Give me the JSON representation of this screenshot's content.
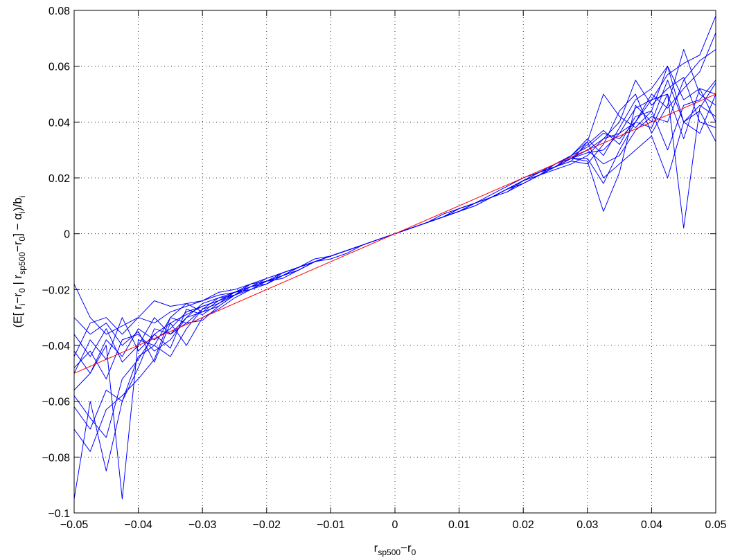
{
  "chart_data": {
    "type": "line",
    "title": "",
    "xlabel": {
      "main": "r",
      "sub1": "sp500",
      "mid": "−r",
      "sub2": "0"
    },
    "ylabel": {
      "parts": [
        {
          "t": "(E[ r",
          "sub": false
        },
        {
          "t": "i",
          "sub": true
        },
        {
          "t": "−r",
          "sub": false
        },
        {
          "t": "0",
          "sub": true
        },
        {
          "t": " | r",
          "sub": false
        },
        {
          "t": "sp500",
          "sub": true
        },
        {
          "t": "−r",
          "sub": false
        },
        {
          "t": "0",
          "sub": true
        },
        {
          "t": "] − α",
          "sub": false
        },
        {
          "t": "i",
          "sub": true
        },
        {
          "t": ")/b",
          "sub": false
        },
        {
          "t": "i",
          "sub": true
        }
      ]
    },
    "xlim": [
      -0.05,
      0.05
    ],
    "ylim": [
      -0.1,
      0.08
    ],
    "xticks": [
      -0.05,
      -0.04,
      -0.03,
      -0.02,
      -0.01,
      0,
      0.01,
      0.02,
      0.03,
      0.04,
      0.05
    ],
    "xtick_labels": [
      "−0.05",
      "−0.04",
      "−0.03",
      "−0.02",
      "−0.01",
      "0",
      "0.01",
      "0.02",
      "0.03",
      "0.04",
      "0.05"
    ],
    "yticks": [
      -0.1,
      -0.08,
      -0.06,
      -0.04,
      -0.02,
      0,
      0.02,
      0.04,
      0.06,
      0.08
    ],
    "ytick_labels": [
      "−0.1",
      "−0.08",
      "−0.06",
      "−0.04",
      "−0.02",
      "0",
      "0.02",
      "0.04",
      "0.06",
      "0.08"
    ],
    "grid": "dotted",
    "colors": {
      "series": "#0000ff",
      "reference": "#ff0000",
      "axes": "#000000",
      "grid": "#000000"
    },
    "x": [
      -0.05,
      -0.0475,
      -0.045,
      -0.0425,
      -0.04,
      -0.0375,
      -0.035,
      -0.0325,
      -0.03,
      -0.0275,
      -0.025,
      -0.0225,
      -0.02,
      -0.0175,
      -0.015,
      -0.0125,
      -0.01,
      -0.0075,
      -0.005,
      -0.0025,
      0,
      0.0025,
      0.005,
      0.0075,
      0.01,
      0.0125,
      0.015,
      0.0175,
      0.02,
      0.0225,
      0.025,
      0.0275,
      0.03,
      0.0325,
      0.035,
      0.0375,
      0.04,
      0.0425,
      0.045,
      0.0475,
      0.05
    ],
    "series": [
      {
        "values": [
          -0.018,
          -0.03,
          -0.036,
          -0.033,
          -0.03,
          -0.024,
          -0.026,
          -0.025,
          -0.024,
          -0.022,
          -0.021,
          -0.018,
          -0.017,
          -0.014,
          -0.012,
          -0.009,
          -0.008,
          -0.006,
          -0.004,
          -0.002,
          0,
          0.002,
          0.004,
          0.006,
          0.008,
          0.011,
          0.013,
          0.016,
          0.019,
          0.022,
          0.024,
          0.027,
          0.03,
          0.034,
          0.036,
          0.04,
          0.048,
          0.057,
          0.061,
          0.064,
          0.078
        ]
      },
      {
        "values": [
          -0.095,
          -0.06,
          -0.085,
          -0.06,
          -0.048,
          -0.034,
          -0.036,
          -0.03,
          -0.028,
          -0.026,
          -0.022,
          -0.019,
          -0.017,
          -0.016,
          -0.013,
          -0.01,
          -0.009,
          -0.007,
          -0.004,
          -0.002,
          0,
          0.002,
          0.004,
          0.007,
          0.009,
          0.011,
          0.014,
          0.017,
          0.02,
          0.022,
          0.025,
          0.027,
          0.027,
          0.018,
          0.03,
          0.04,
          0.05,
          0.045,
          0.052,
          0.058,
          0.072
        ]
      },
      {
        "values": [
          -0.07,
          -0.078,
          -0.063,
          -0.058,
          -0.052,
          -0.045,
          -0.03,
          -0.025,
          -0.028,
          -0.024,
          -0.022,
          -0.019,
          -0.017,
          -0.015,
          -0.012,
          -0.01,
          -0.008,
          -0.006,
          -0.004,
          -0.002,
          0,
          0.002,
          0.004,
          0.006,
          0.009,
          0.011,
          0.013,
          0.016,
          0.019,
          0.022,
          0.024,
          0.027,
          0.03,
          0.025,
          0.028,
          0.037,
          0.042,
          0.04,
          0.055,
          0.062,
          0.066
        ]
      },
      {
        "values": [
          -0.042,
          -0.05,
          -0.04,
          -0.095,
          -0.038,
          -0.04,
          -0.03,
          -0.032,
          -0.027,
          -0.025,
          -0.021,
          -0.019,
          -0.018,
          -0.014,
          -0.012,
          -0.01,
          -0.008,
          -0.006,
          -0.004,
          -0.002,
          0,
          0.002,
          0.004,
          0.006,
          0.009,
          0.011,
          0.013,
          0.016,
          0.019,
          0.021,
          0.025,
          0.028,
          0.031,
          0.036,
          0.034,
          0.04,
          0.038,
          0.05,
          0.002,
          0.045,
          0.054
        ]
      },
      {
        "values": [
          -0.05,
          -0.038,
          -0.045,
          -0.03,
          -0.042,
          -0.036,
          -0.032,
          -0.04,
          -0.03,
          -0.027,
          -0.023,
          -0.02,
          -0.018,
          -0.015,
          -0.013,
          -0.01,
          -0.008,
          -0.006,
          -0.004,
          -0.002,
          0,
          0.002,
          0.004,
          0.006,
          0.008,
          0.011,
          0.013,
          0.016,
          0.019,
          0.021,
          0.024,
          0.028,
          0.033,
          0.02,
          0.025,
          0.03,
          0.035,
          0.02,
          0.04,
          0.046,
          0.042
        ]
      },
      {
        "values": [
          -0.03,
          -0.036,
          -0.032,
          -0.04,
          -0.035,
          -0.046,
          -0.032,
          -0.029,
          -0.026,
          -0.024,
          -0.021,
          -0.02,
          -0.017,
          -0.015,
          -0.012,
          -0.01,
          -0.008,
          -0.006,
          -0.004,
          -0.002,
          0,
          0.002,
          0.004,
          0.006,
          0.008,
          0.011,
          0.013,
          0.016,
          0.019,
          0.022,
          0.024,
          0.027,
          0.029,
          0.03,
          0.036,
          0.045,
          0.048,
          0.05,
          0.034,
          0.052,
          0.05
        ]
      },
      {
        "values": [
          -0.058,
          -0.066,
          -0.073,
          -0.052,
          -0.045,
          -0.036,
          -0.041,
          -0.027,
          -0.029,
          -0.025,
          -0.022,
          -0.019,
          -0.018,
          -0.015,
          -0.013,
          -0.01,
          -0.008,
          -0.006,
          -0.004,
          -0.002,
          0,
          0.002,
          0.004,
          0.006,
          0.008,
          0.011,
          0.013,
          0.016,
          0.019,
          0.022,
          0.024,
          0.027,
          0.026,
          0.008,
          0.022,
          0.046,
          0.04,
          0.055,
          0.04,
          0.036,
          0.05
        ]
      },
      {
        "values": [
          -0.044,
          -0.032,
          -0.03,
          -0.036,
          -0.03,
          -0.032,
          -0.028,
          -0.026,
          -0.024,
          -0.021,
          -0.02,
          -0.018,
          -0.016,
          -0.014,
          -0.012,
          -0.01,
          -0.008,
          -0.006,
          -0.004,
          -0.002,
          0,
          0.002,
          0.004,
          0.006,
          0.008,
          0.01,
          0.013,
          0.015,
          0.018,
          0.021,
          0.024,
          0.026,
          0.033,
          0.05,
          0.042,
          0.038,
          0.044,
          0.03,
          0.046,
          0.048,
          0.055
        ]
      },
      {
        "values": [
          -0.056,
          -0.05,
          -0.038,
          -0.044,
          -0.034,
          -0.038,
          -0.034,
          -0.028,
          -0.026,
          -0.024,
          -0.021,
          -0.019,
          -0.017,
          -0.015,
          -0.012,
          -0.01,
          -0.008,
          -0.006,
          -0.004,
          -0.002,
          0,
          0.002,
          0.004,
          0.006,
          0.008,
          0.011,
          0.013,
          0.016,
          0.018,
          0.021,
          0.024,
          0.027,
          0.032,
          0.037,
          0.032,
          0.042,
          0.044,
          0.06,
          0.048,
          0.052,
          0.04
        ]
      },
      {
        "values": [
          -0.062,
          -0.07,
          -0.056,
          -0.06,
          -0.044,
          -0.04,
          -0.044,
          -0.034,
          -0.027,
          -0.023,
          -0.022,
          -0.018,
          -0.017,
          -0.015,
          -0.012,
          -0.01,
          -0.008,
          -0.006,
          -0.004,
          -0.002,
          0,
          0.002,
          0.004,
          0.006,
          0.008,
          0.011,
          0.013,
          0.015,
          0.019,
          0.022,
          0.025,
          0.028,
          0.034,
          0.028,
          0.038,
          0.048,
          0.052,
          0.06,
          0.04,
          0.044,
          0.033
        ]
      },
      {
        "values": [
          -0.036,
          -0.044,
          -0.034,
          -0.046,
          -0.04,
          -0.03,
          -0.036,
          -0.032,
          -0.031,
          -0.026,
          -0.022,
          -0.02,
          -0.018,
          -0.015,
          -0.013,
          -0.01,
          -0.008,
          -0.006,
          -0.004,
          -0.002,
          0,
          0.002,
          0.004,
          0.006,
          0.008,
          0.01,
          0.013,
          0.016,
          0.018,
          0.021,
          0.023,
          0.025,
          0.028,
          0.034,
          0.04,
          0.055,
          0.046,
          0.052,
          0.056,
          0.04,
          0.038
        ]
      },
      {
        "values": [
          -0.048,
          -0.042,
          -0.052,
          -0.038,
          -0.036,
          -0.042,
          -0.038,
          -0.03,
          -0.025,
          -0.023,
          -0.021,
          -0.019,
          -0.016,
          -0.014,
          -0.012,
          -0.01,
          -0.008,
          -0.006,
          -0.004,
          -0.002,
          0,
          0.002,
          0.004,
          0.006,
          0.009,
          0.011,
          0.013,
          0.016,
          0.019,
          0.022,
          0.024,
          0.026,
          0.025,
          0.032,
          0.044,
          0.05,
          0.036,
          0.046,
          0.066,
          0.05,
          0.046
        ]
      }
    ],
    "reference": {
      "name": "",
      "x": [
        -0.05,
        0.05
      ],
      "y": [
        -0.05,
        0.05
      ]
    }
  }
}
